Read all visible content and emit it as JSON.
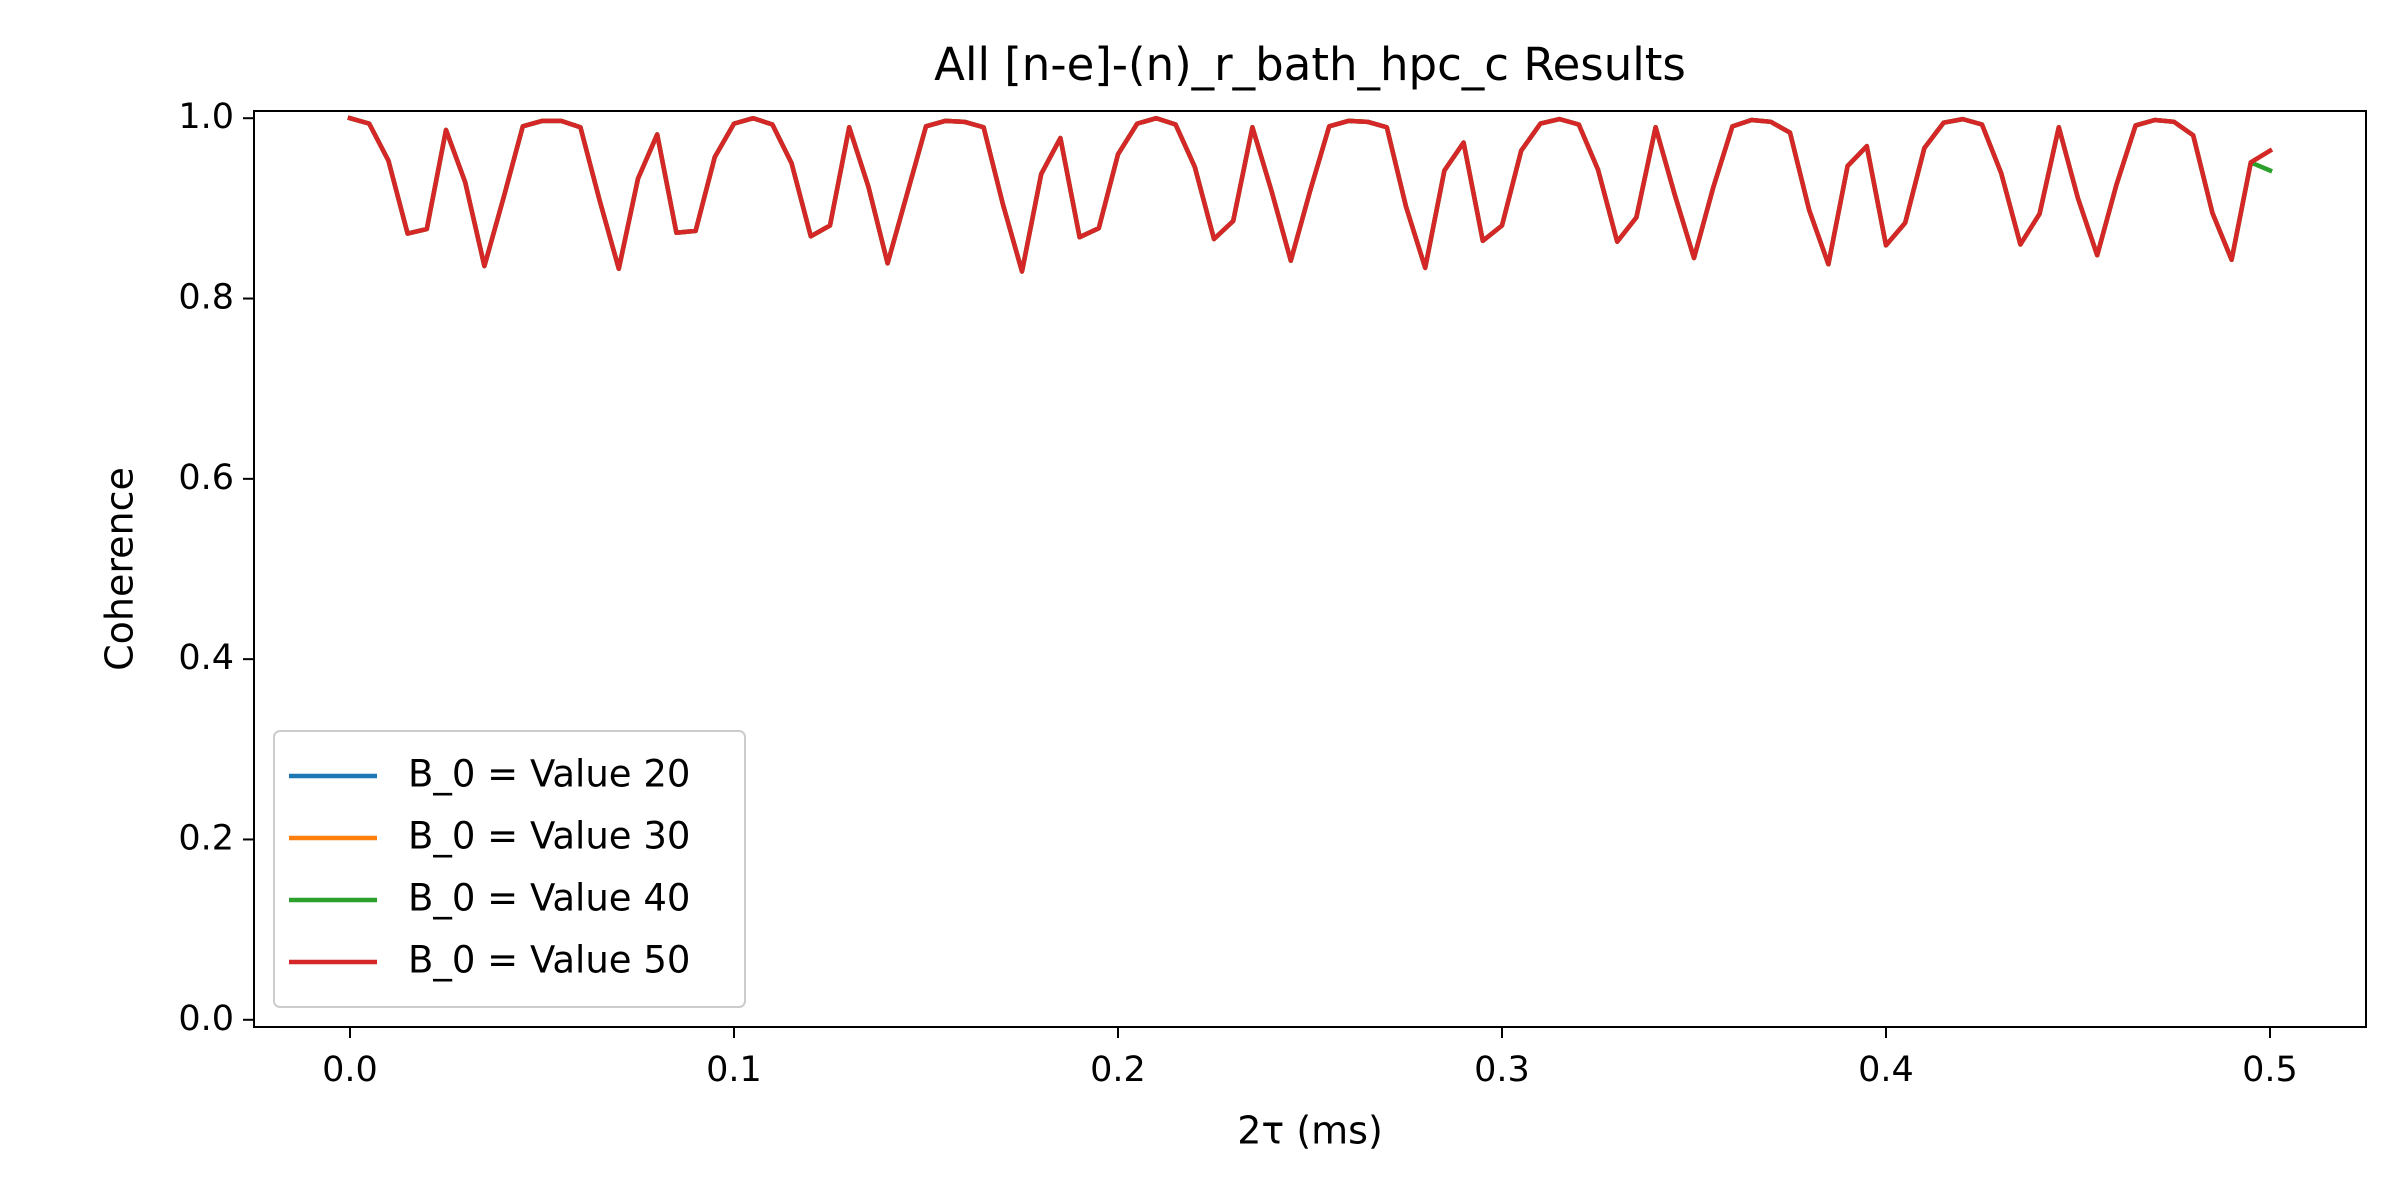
{
  "chart_data": {
    "type": "line",
    "title": "All [n-e]-(n)_r_bath_hpc_c Results",
    "xlabel": "2τ (ms)",
    "ylabel": "Coherence",
    "xlim": [
      -0.025,
      0.525
    ],
    "ylim": [
      -0.008,
      1.008
    ],
    "xticks": [
      {
        "value": 0,
        "label": "0.0"
      },
      {
        "value": 0.1,
        "label": "0.1"
      },
      {
        "value": 0.2,
        "label": "0.2"
      },
      {
        "value": 0.3,
        "label": "0.3"
      },
      {
        "value": 0.4,
        "label": "0.4"
      },
      {
        "value": 0.5,
        "label": "0.5"
      }
    ],
    "yticks": [
      {
        "value": 0,
        "label": "0.0"
      },
      {
        "value": 0.2,
        "label": "0.2"
      },
      {
        "value": 0.4,
        "label": "0.4"
      },
      {
        "value": 0.6,
        "label": "0.6"
      },
      {
        "value": 0.8,
        "label": "0.8"
      },
      {
        "value": 1,
        "label": "1.0"
      }
    ],
    "legend": "lower left",
    "x": [
      0,
      0.005,
      0.01,
      0.015,
      0.02,
      0.025,
      0.03,
      0.035,
      0.04,
      0.045,
      0.05,
      0.055,
      0.06,
      0.065,
      0.07,
      0.075,
      0.08,
      0.085,
      0.09,
      0.095,
      0.1,
      0.105,
      0.11,
      0.115,
      0.12,
      0.125,
      0.13,
      0.135,
      0.14,
      0.145,
      0.15,
      0.155,
      0.16,
      0.165,
      0.17,
      0.175,
      0.18,
      0.185,
      0.19,
      0.195,
      0.2,
      0.205,
      0.21,
      0.215,
      0.22,
      0.225,
      0.23,
      0.235,
      0.24,
      0.245,
      0.25,
      0.255,
      0.26,
      0.265,
      0.27,
      0.275,
      0.28,
      0.285,
      0.29,
      0.295,
      0.3,
      0.305,
      0.31,
      0.315,
      0.32,
      0.325,
      0.33,
      0.335,
      0.34,
      0.345,
      0.35,
      0.355,
      0.36,
      0.365,
      0.37,
      0.375,
      0.38,
      0.385,
      0.39,
      0.395,
      0.4,
      0.405,
      0.41,
      0.415,
      0.42,
      0.425,
      0.43,
      0.435,
      0.44,
      0.445,
      0.45,
      0.455,
      0.46,
      0.465,
      0.47,
      0.475,
      0.48,
      0.485,
      0.49,
      0.495,
      0.5
    ],
    "series": [
      {
        "name": "B_0 = Value 20",
        "color": "#1f77b4",
        "values": [
          1.0,
          0.994,
          0.953,
          0.872,
          0.877,
          0.987,
          0.929,
          0.836,
          0.912,
          0.991,
          0.997,
          0.997,
          0.99,
          0.909,
          0.833,
          0.933,
          0.982,
          0.873,
          0.875,
          0.957,
          0.994,
          1.0,
          0.993,
          0.95,
          0.869,
          0.881,
          0.99,
          0.924,
          0.839,
          0.915,
          0.991,
          0.997,
          0.996,
          0.99,
          0.905,
          0.83,
          0.938,
          0.978,
          0.868,
          0.878,
          0.96,
          0.994,
          1.0,
          0.993,
          0.946,
          0.866,
          0.886,
          0.99,
          0.919,
          0.842,
          0.919,
          0.991,
          0.997,
          0.996,
          0.99,
          0.902,
          0.834,
          0.942,
          0.973,
          0.864,
          0.881,
          0.964,
          0.994,
          0.999,
          0.993,
          0.943,
          0.863,
          0.89,
          0.99,
          0.915,
          0.845,
          0.923,
          0.991,
          0.998,
          0.996,
          0.984,
          0.898,
          0.838,
          0.947,
          0.969,
          0.859,
          0.884,
          0.967,
          0.995,
          0.999,
          0.993,
          0.939,
          0.86,
          0.894,
          0.99,
          0.911,
          0.848,
          0.926,
          0.992,
          0.998,
          0.996,
          0.981,
          0.895,
          0.843,
          0.951,
          0.964
        ]
      },
      {
        "name": "B_0 = Value 30",
        "color": "#ff7f0e",
        "values": [
          1.0,
          0.994,
          0.953,
          0.872,
          0.877,
          0.987,
          0.929,
          0.836,
          0.912,
          0.991,
          0.997,
          0.997,
          0.99,
          0.909,
          0.833,
          0.933,
          0.982,
          0.873,
          0.875,
          0.957,
          0.994,
          1.0,
          0.993,
          0.95,
          0.869,
          0.881,
          0.99,
          0.924,
          0.839,
          0.915,
          0.991,
          0.997,
          0.996,
          0.99,
          0.905,
          0.83,
          0.938,
          0.978,
          0.868,
          0.878,
          0.96,
          0.994,
          1.0,
          0.993,
          0.946,
          0.866,
          0.886,
          0.99,
          0.919,
          0.842,
          0.919,
          0.991,
          0.997,
          0.996,
          0.99,
          0.902,
          0.834,
          0.942,
          0.973,
          0.864,
          0.881,
          0.964,
          0.994,
          0.999,
          0.993,
          0.943,
          0.863,
          0.89,
          0.99,
          0.915,
          0.845,
          0.923,
          0.991,
          0.998,
          0.996,
          0.984,
          0.898,
          0.838,
          0.947,
          0.969,
          0.859,
          0.884,
          0.967,
          0.995,
          0.999,
          0.993,
          0.939,
          0.86,
          0.894,
          0.99,
          0.911,
          0.848,
          0.926,
          0.992,
          0.998,
          0.996,
          0.981,
          0.895,
          0.843,
          0.951,
          0.964
        ]
      },
      {
        "name": "B_0 = Value 40",
        "color": "#2ca02c",
        "values": [
          1.0,
          0.994,
          0.953,
          0.872,
          0.877,
          0.987,
          0.929,
          0.836,
          0.912,
          0.991,
          0.997,
          0.997,
          0.99,
          0.909,
          0.833,
          0.933,
          0.982,
          0.873,
          0.875,
          0.957,
          0.994,
          1.0,
          0.993,
          0.95,
          0.869,
          0.881,
          0.99,
          0.924,
          0.839,
          0.915,
          0.991,
          0.997,
          0.996,
          0.99,
          0.905,
          0.83,
          0.938,
          0.978,
          0.868,
          0.878,
          0.96,
          0.994,
          1.0,
          0.993,
          0.946,
          0.866,
          0.886,
          0.99,
          0.919,
          0.842,
          0.919,
          0.991,
          0.997,
          0.996,
          0.99,
          0.902,
          0.834,
          0.942,
          0.973,
          0.864,
          0.881,
          0.964,
          0.994,
          0.999,
          0.993,
          0.943,
          0.863,
          0.89,
          0.99,
          0.915,
          0.845,
          0.923,
          0.991,
          0.998,
          0.996,
          0.984,
          0.898,
          0.838,
          0.947,
          0.969,
          0.859,
          0.884,
          0.967,
          0.995,
          0.999,
          0.993,
          0.939,
          0.86,
          0.894,
          0.99,
          0.911,
          0.848,
          0.926,
          0.992,
          0.998,
          0.996,
          0.981,
          0.895,
          0.843,
          0.951,
          0.942
        ]
      },
      {
        "name": "B_0 = Value 50",
        "color": "#d62728",
        "values": [
          1.0,
          0.994,
          0.953,
          0.872,
          0.877,
          0.987,
          0.929,
          0.836,
          0.912,
          0.991,
          0.997,
          0.997,
          0.99,
          0.909,
          0.833,
          0.933,
          0.982,
          0.873,
          0.875,
          0.957,
          0.994,
          1.0,
          0.993,
          0.95,
          0.869,
          0.881,
          0.99,
          0.924,
          0.839,
          0.915,
          0.991,
          0.997,
          0.996,
          0.99,
          0.905,
          0.83,
          0.938,
          0.978,
          0.868,
          0.878,
          0.96,
          0.994,
          1.0,
          0.993,
          0.946,
          0.866,
          0.886,
          0.99,
          0.919,
          0.842,
          0.919,
          0.991,
          0.997,
          0.996,
          0.99,
          0.902,
          0.834,
          0.942,
          0.973,
          0.864,
          0.881,
          0.964,
          0.994,
          0.999,
          0.993,
          0.943,
          0.863,
          0.89,
          0.99,
          0.915,
          0.845,
          0.923,
          0.991,
          0.998,
          0.996,
          0.984,
          0.898,
          0.838,
          0.947,
          0.969,
          0.859,
          0.884,
          0.967,
          0.995,
          0.999,
          0.993,
          0.939,
          0.86,
          0.894,
          0.99,
          0.911,
          0.848,
          0.926,
          0.992,
          0.998,
          0.996,
          0.981,
          0.895,
          0.843,
          0.951,
          0.964
        ]
      }
    ]
  }
}
